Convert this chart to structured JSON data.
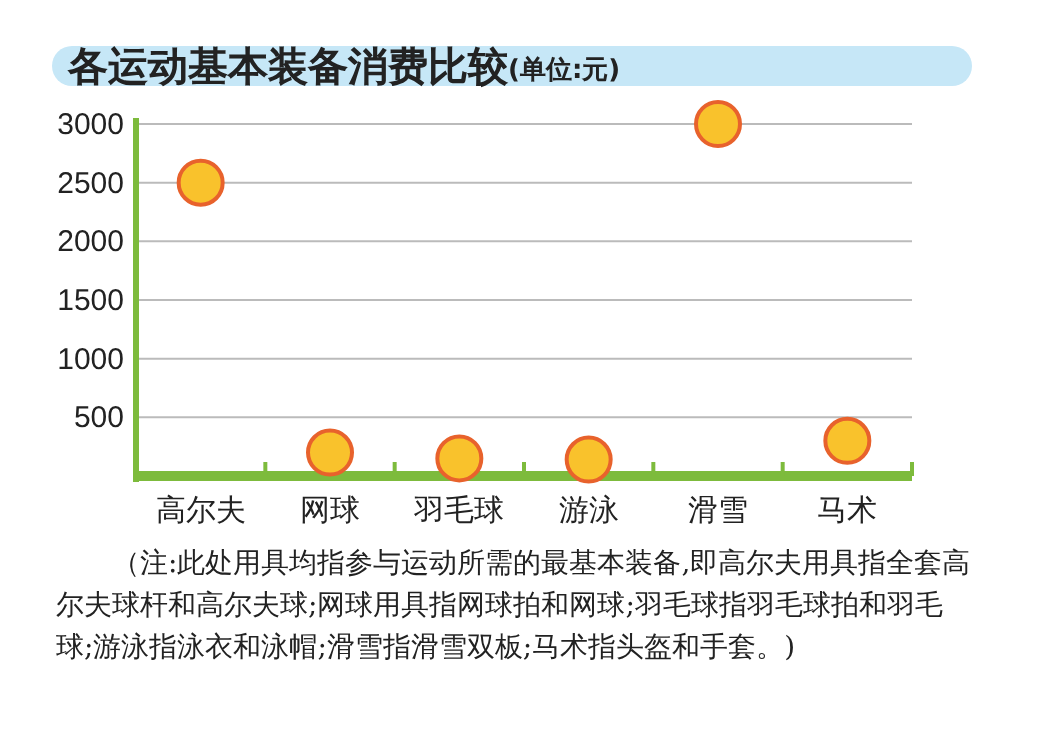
{
  "chart_data": {
    "type": "scatter",
    "title": "各运动基本装备消费比较",
    "subtitle": "(单位:元)",
    "categories": [
      "高尔夫",
      "网球",
      "羽毛球",
      "游泳",
      "滑雪",
      "马术"
    ],
    "series": [
      {
        "color": "#f9c22c",
        "values": [
          2500,
          200,
          150,
          140,
          3000,
          300
        ]
      }
    ],
    "ylim": [
      0,
      3000
    ],
    "yticks": [
      500,
      1000,
      1500,
      2000,
      2500,
      3000
    ],
    "grid": "y",
    "marker": "circle",
    "annotations": [
      "（注:此处用具均指参与运动所需的最基本装备,即高尔夫用具指全套高尔夫球杆和高尔夫球;网球用具指网球拍和网球;羽毛球指羽毛球拍和羽毛球;游泳指泳衣和泳帽;滑雪指滑雪双板;马术指头盔和手套。)"
    ]
  }
}
